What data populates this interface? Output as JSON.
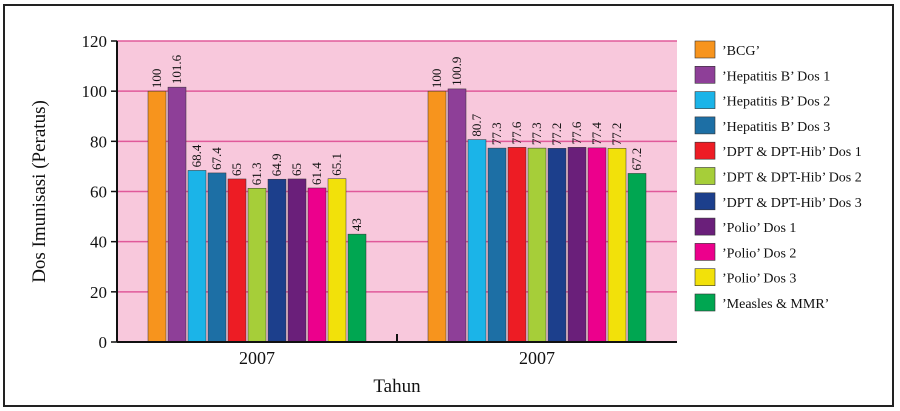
{
  "chart_data": {
    "type": "bar",
    "xlabel": "Tahun",
    "ylabel": "Dos Imunisasi (Peratus)",
    "ylim": [
      0,
      120
    ],
    "yticks": [
      0,
      20,
      40,
      60,
      80,
      100,
      120
    ],
    "grid": true,
    "legend_position": "right",
    "plot_background": "#f8c8dc",
    "gridline_color": "#e05a9a",
    "categories": [
      "2007",
      "2007"
    ],
    "series": [
      {
        "name": "’BCG’",
        "color": "#f7941d",
        "values": [
          100,
          100
        ]
      },
      {
        "name": "’Hepatitis B’ Dos 1",
        "color": "#8e3f98",
        "values": [
          101.6,
          100.9
        ]
      },
      {
        "name": "’Hepatitis B’ Dos 2",
        "color": "#1bb4e8",
        "values": [
          68.4,
          80.7
        ]
      },
      {
        "name": "’Hepatitis B’ Dos 3",
        "color": "#1d6fa5",
        "values": [
          67.4,
          77.3
        ]
      },
      {
        "name": "’DPT & DPT-Hib’ Dos 1",
        "color": "#ed1c24",
        "values": [
          65,
          77.6
        ]
      },
      {
        "name": "’DPT & DPT-Hib’ Dos 2",
        "color": "#a6ce39",
        "values": [
          61.3,
          77.3
        ]
      },
      {
        "name": "’DPT & DPT-Hib’ Dos 3",
        "color": "#1c3f8c",
        "values": [
          64.9,
          77.2
        ]
      },
      {
        "name": "’Polio’ Dos 1",
        "color": "#6a1f7a",
        "values": [
          65,
          77.6
        ]
      },
      {
        "name": "’Polio’ Dos 2",
        "color": "#ec008c",
        "values": [
          61.4,
          77.4
        ]
      },
      {
        "name": "’Polio’ Dos 3",
        "color": "#f2e10a",
        "values": [
          65.1,
          77.2
        ]
      },
      {
        "name": "’Measles & MMR’",
        "color": "#00a651",
        "values": [
          43,
          67.2
        ]
      }
    ]
  }
}
